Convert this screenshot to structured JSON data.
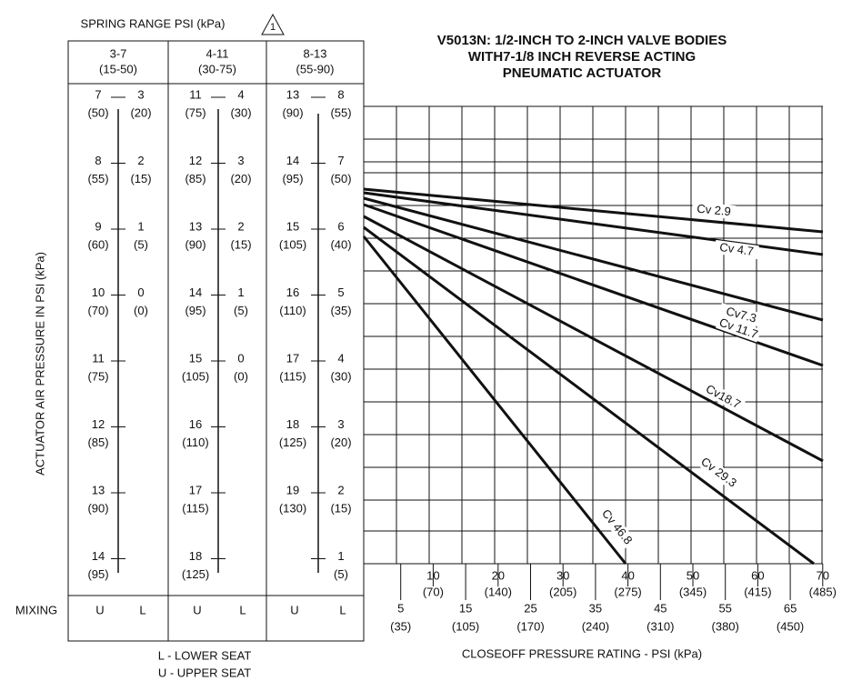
{
  "spring_range_label": "SPRING RANGE PSI (kPa)",
  "note_marker": "1",
  "title": [
    "V5013N:  1/2-INCH TO 2-INCH VALVE BODIES",
    "WITH7-1/8 INCH REVERSE ACTING",
    "PNEUMATIC ACTUATOR"
  ],
  "y_axis_label": "ACTUATOR AIR PRESSURE IN PSI (kPa)",
  "x_axis_label": "CLOSEOFF PRESSURE RATING - PSI (kPa)",
  "mixing_label": "MIXING",
  "legend": [
    "L - LOWER SEAT",
    "U - UPPER SEAT"
  ],
  "columns": [
    {
      "header": "3-7",
      "header_kpa": "(15-50)",
      "left": [
        [
          "7",
          "(50)"
        ],
        [
          "8",
          "(55)"
        ],
        [
          "9",
          "(60)"
        ],
        [
          "10",
          "(70)"
        ],
        [
          "11",
          "(75)"
        ],
        [
          "12",
          "(85)"
        ],
        [
          "13",
          "(90)"
        ],
        [
          "14",
          "(95)"
        ]
      ],
      "right": [
        [
          "3",
          "(20)"
        ],
        [
          "2",
          "(15)"
        ],
        [
          "1",
          "(5)"
        ],
        [
          "0",
          "(0)"
        ]
      ],
      "mixing": [
        "U",
        "L"
      ]
    },
    {
      "header": "4-11",
      "header_kpa": "(30-75)",
      "left": [
        [
          "11",
          "(75)"
        ],
        [
          "12",
          "(85)"
        ],
        [
          "13",
          "(90)"
        ],
        [
          "14",
          "(95)"
        ],
        [
          "15",
          "(105)"
        ],
        [
          "16",
          "(110)"
        ],
        [
          "17",
          "(115)"
        ],
        [
          "18",
          "(125)"
        ]
      ],
      "right": [
        [
          "4",
          "(30)"
        ],
        [
          "3",
          "(20)"
        ],
        [
          "2",
          "(15)"
        ],
        [
          "1",
          "(5)"
        ],
        [
          "0",
          "(0)"
        ]
      ],
      "mixing": [
        "U",
        "L"
      ]
    },
    {
      "header": "8-13",
      "header_kpa": "(55-90)",
      "left": [
        [
          "13",
          "(90)"
        ],
        [
          "14",
          "(95)"
        ],
        [
          "15",
          "(105)"
        ],
        [
          "16",
          "(110)"
        ],
        [
          "17",
          "(115)"
        ],
        [
          "18",
          "(125)"
        ],
        [
          "19",
          "(130)"
        ]
      ],
      "right": [
        [
          "8",
          "(55)"
        ],
        [
          "7",
          "(50)"
        ],
        [
          "6",
          "(40)"
        ],
        [
          "5",
          "(35)"
        ],
        [
          "4",
          "(30)"
        ],
        [
          "3",
          "(20)"
        ],
        [
          "2",
          "(15)"
        ],
        [
          "1",
          "(5)"
        ]
      ],
      "mixing": [
        "U",
        "L"
      ]
    }
  ],
  "x_scale": {
    "upper": [
      [
        "10",
        "(70)"
      ],
      [
        "20",
        "(140)"
      ],
      [
        "30",
        "(205)"
      ],
      [
        "40",
        "(275)"
      ],
      [
        "50",
        "(345)"
      ],
      [
        "60",
        "(415)"
      ],
      [
        "70",
        "(485)"
      ]
    ],
    "lower": [
      [
        "5",
        "(35)"
      ],
      [
        "15",
        "(105)"
      ],
      [
        "25",
        "(170)"
      ],
      [
        "35",
        "(240)"
      ],
      [
        "45",
        "(310)"
      ],
      [
        "55",
        "(380)"
      ],
      [
        "65",
        "(450)"
      ]
    ]
  },
  "cv_lines": [
    "Cv 2.9",
    "Cv 4.7",
    "Cv7.3",
    "Cv 11.7",
    "Cv18.7",
    "Cv 29.3",
    "Cv 46.8"
  ]
}
